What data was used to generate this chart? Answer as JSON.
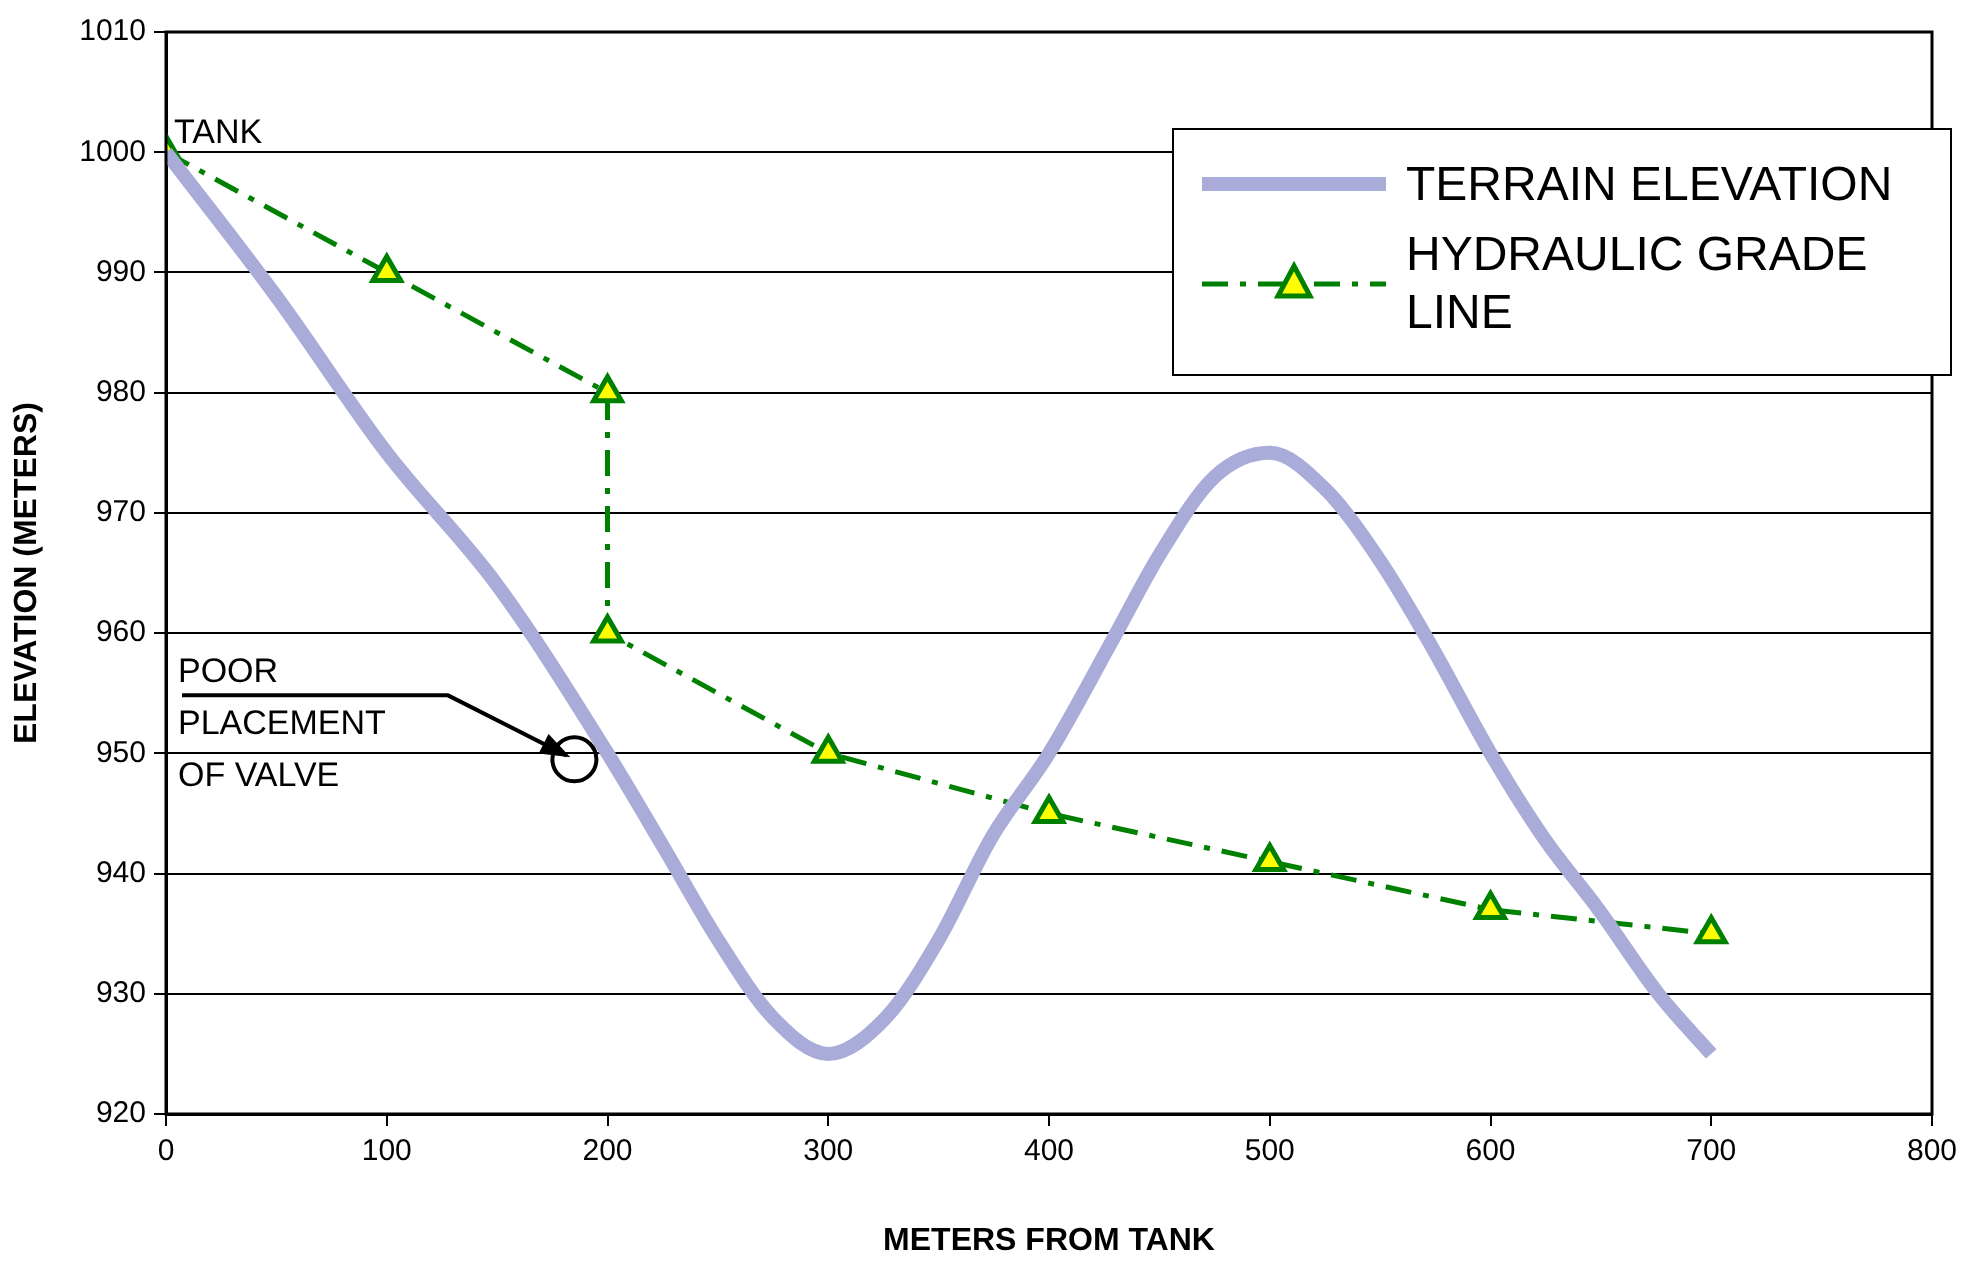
{
  "chart_data": {
    "type": "line",
    "xlabel": "METERS FROM TANK",
    "ylabel": "ELEVATION (METERS)",
    "xlim": [
      0,
      800
    ],
    "xticks": [
      0,
      100,
      200,
      300,
      400,
      500,
      600,
      700,
      800
    ],
    "ylim": [
      920,
      1010
    ],
    "yticks": [
      920,
      930,
      940,
      950,
      960,
      970,
      980,
      990,
      1000,
      1010
    ],
    "grid": "y",
    "legend": "top right",
    "series": [
      {
        "name": "TERRAIN ELEVATION",
        "color": "#a9abd8",
        "marker": "none",
        "line_style": "solid",
        "x": [
          0,
          50,
          100,
          150,
          200,
          226,
          250,
          275,
          300,
          326,
          350,
          374,
          400,
          429,
          450,
          475,
          500,
          525,
          550,
          573,
          600,
          624,
          649,
          676,
          700
        ],
        "values": [
          1000,
          988,
          975,
          964,
          950,
          942,
          934.5,
          928,
          925,
          928,
          934.5,
          943,
          950,
          959.5,
          966.5,
          973,
          975,
          972,
          966,
          959,
          950,
          943,
          937,
          930,
          925
        ]
      },
      {
        "name": "HYDRAULIC GRADE LINE",
        "color": "#008000",
        "marker": "triangle",
        "line_style": "dashed",
        "x": [
          0,
          100,
          200,
          200,
          300,
          400,
          500,
          600,
          700
        ],
        "values": [
          1000,
          990,
          980,
          960,
          950,
          945,
          941,
          937,
          935
        ]
      }
    ],
    "annotations": [
      {
        "text": "TANK",
        "x": 0,
        "y": 1000
      },
      {
        "text": "POOR PLACEMENT OF VALVE",
        "x": 185,
        "y": 949.5
      }
    ]
  }
}
